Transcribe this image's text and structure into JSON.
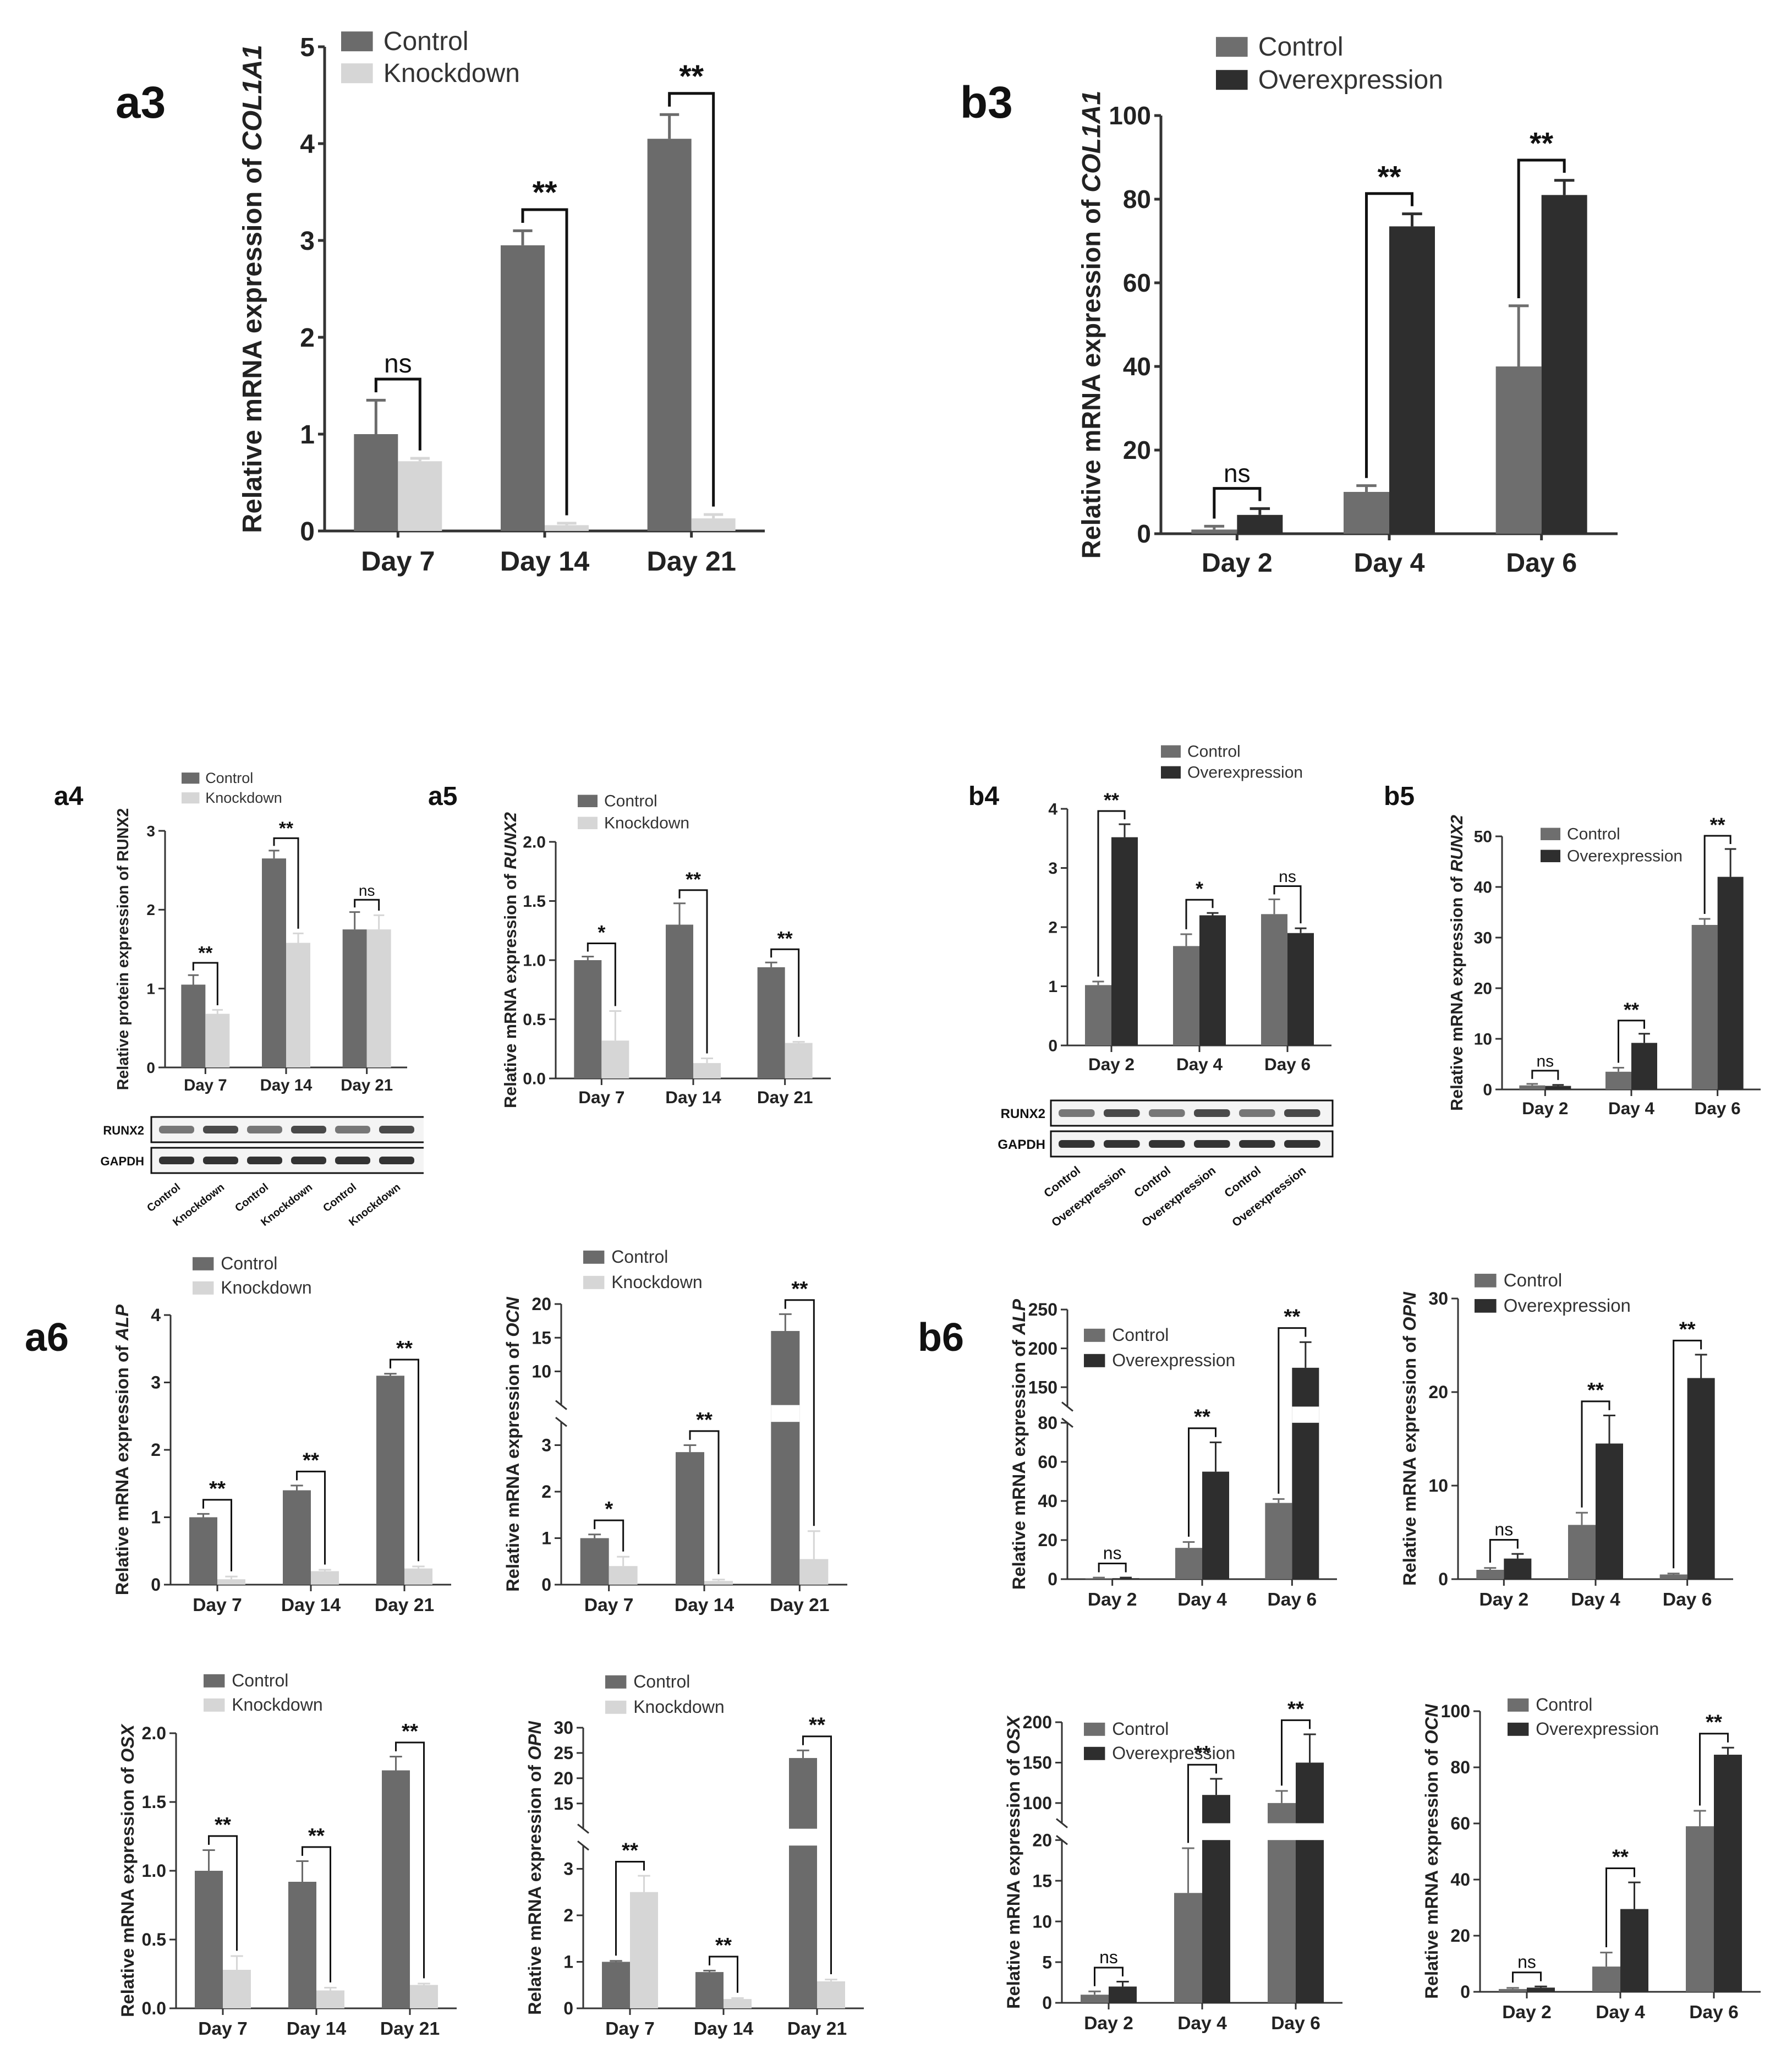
{
  "colors": {
    "control": "#6b6b6b",
    "knockdown": "#d6d6d6",
    "ctrl_b": "#6e6e6e",
    "over": "#2e2e2e",
    "axis": "#333333"
  },
  "legends": {
    "control": "Control",
    "knockdown": "Knockdown",
    "overexpression": "Overexpression"
  },
  "panel_labels": {
    "a3": "a3",
    "b3": "b3",
    "a4": "a4",
    "a5": "a5",
    "b4": "b4",
    "b5": "b5",
    "a6": "a6",
    "b6": "b6"
  },
  "western": {
    "a4": {
      "rows": [
        "RUNX2",
        "GAPDH"
      ],
      "lanes": [
        "Control",
        "Knockdown",
        "Control",
        "Knockdown",
        "Control",
        "Knockdown"
      ]
    },
    "b4": {
      "rows": [
        "RUNX2",
        "GAPDH"
      ],
      "lanes": [
        "Control",
        "Overexpression",
        "Control",
        "Overexpression",
        "Control",
        "Overexpression"
      ]
    }
  },
  "chart_data": [
    {
      "id": "a3",
      "type": "bar",
      "ylabel_prefix": "Relative mRNA expression of ",
      "gene": "COL1A1",
      "categories": [
        "Day 7",
        "Day 14",
        "Day 21"
      ],
      "series": [
        {
          "name": "Control",
          "values": [
            1.0,
            2.95,
            4.05
          ],
          "errors": [
            0.35,
            0.15,
            0.25
          ]
        },
        {
          "name": "Knockdown",
          "values": [
            0.72,
            0.06,
            0.13
          ],
          "errors": [
            0.03,
            0.02,
            0.04
          ]
        }
      ],
      "ylim": [
        0,
        5
      ],
      "yticks": [
        "0",
        "1",
        "2",
        "3",
        "4",
        "5"
      ],
      "significance": [
        "ns",
        "**",
        "**"
      ]
    },
    {
      "id": "b3",
      "type": "bar",
      "ylabel_prefix": "Relative mRNA expression of ",
      "gene": "COL1A1",
      "categories": [
        "Day 2",
        "Day 4",
        "Day 6"
      ],
      "series": [
        {
          "name": "Control",
          "values": [
            1.0,
            10.0,
            40.0
          ],
          "errors": [
            0.8,
            1.5,
            14.5
          ]
        },
        {
          "name": "Overexpression",
          "values": [
            4.5,
            73.5,
            81.0
          ],
          "errors": [
            1.5,
            3.0,
            3.5
          ]
        }
      ],
      "ylim": [
        0,
        100
      ],
      "yticks": [
        "0",
        "20",
        "40",
        "60",
        "80",
        "100"
      ],
      "significance": [
        "ns",
        "**",
        "**"
      ]
    },
    {
      "id": "a4",
      "type": "bar",
      "ylabel_prefix": "Relative protein expression of ",
      "gene": "RUNX2",
      "gene_italic": false,
      "categories": [
        "Day 7",
        "Day 14",
        "Day 21"
      ],
      "series": [
        {
          "name": "Control",
          "values": [
            1.05,
            2.65,
            1.75
          ],
          "errors": [
            0.12,
            0.1,
            0.22
          ]
        },
        {
          "name": "Knockdown",
          "values": [
            0.68,
            1.58,
            1.75
          ],
          "errors": [
            0.05,
            0.12,
            0.18
          ]
        }
      ],
      "ylim": [
        0,
        3
      ],
      "yticks": [
        "0",
        "1",
        "2",
        "3"
      ],
      "significance": [
        "**",
        "**",
        "ns"
      ]
    },
    {
      "id": "a5",
      "type": "bar",
      "ylabel_prefix": "Relative mRNA expression of ",
      "gene": "RUNX2",
      "categories": [
        "Day 7",
        "Day 14",
        "Day 21"
      ],
      "series": [
        {
          "name": "Control",
          "values": [
            1.0,
            1.3,
            0.94
          ],
          "errors": [
            0.03,
            0.18,
            0.04
          ]
        },
        {
          "name": "Knockdown",
          "values": [
            0.32,
            0.13,
            0.3
          ],
          "errors": [
            0.25,
            0.04,
            0.01
          ]
        }
      ],
      "ylim": [
        0,
        2.0
      ],
      "yticks": [
        "0.0",
        "0.5",
        "1.0",
        "1.5",
        "2.0"
      ],
      "significance": [
        "*",
        "**",
        "**"
      ]
    },
    {
      "id": "b4",
      "type": "bar",
      "ylabel_prefix": "",
      "gene": "",
      "categories": [
        "Day 2",
        "Day 4",
        "Day 6"
      ],
      "series": [
        {
          "name": "Control",
          "values": [
            1.02,
            1.68,
            2.22
          ],
          "errors": [
            0.06,
            0.2,
            0.25
          ]
        },
        {
          "name": "Overexpression",
          "values": [
            3.52,
            2.2,
            1.9
          ],
          "errors": [
            0.22,
            0.04,
            0.08
          ]
        }
      ],
      "ylim": [
        0,
        4
      ],
      "yticks": [
        "0",
        "1",
        "2",
        "3",
        "4"
      ],
      "significance": [
        "**",
        "*",
        "ns"
      ]
    },
    {
      "id": "b5",
      "type": "bar",
      "ylabel_prefix": "Relative mRNA expression of ",
      "gene": "RUNX2",
      "categories": [
        "Day 2",
        "Day 4",
        "Day 6"
      ],
      "series": [
        {
          "name": "Control",
          "values": [
            0.8,
            3.5,
            32.5
          ],
          "errors": [
            0.3,
            0.8,
            1.2
          ]
        },
        {
          "name": "Overexpression",
          "values": [
            0.7,
            9.2,
            42.0
          ],
          "errors": [
            0.2,
            1.8,
            5.5
          ]
        }
      ],
      "ylim": [
        0,
        50
      ],
      "yticks": [
        "0",
        "10",
        "20",
        "30",
        "40",
        "50"
      ],
      "significance": [
        "ns",
        "**",
        "**"
      ]
    },
    {
      "id": "a6a",
      "type": "bar",
      "ylabel_prefix": "Relative mRNA expression of ",
      "gene": "ALP",
      "categories": [
        "Day 7",
        "Day 14",
        "Day 21"
      ],
      "series": [
        {
          "name": "Control",
          "values": [
            1.0,
            1.4,
            3.1
          ],
          "errors": [
            0.05,
            0.07,
            0.03
          ]
        },
        {
          "name": "Knockdown",
          "values": [
            0.08,
            0.2,
            0.24
          ],
          "errors": [
            0.04,
            0.02,
            0.03
          ]
        }
      ],
      "ylim": [
        0,
        4
      ],
      "yticks": [
        "0",
        "1",
        "2",
        "3",
        "4"
      ],
      "significance": [
        "**",
        "**",
        "**"
      ]
    },
    {
      "id": "a6b",
      "type": "bar",
      "ylabel_prefix": "Relative mRNA expression of ",
      "gene": "OCN",
      "categories": [
        "Day 7",
        "Day 14",
        "Day 21"
      ],
      "series": [
        {
          "name": "Control",
          "values": [
            1.0,
            2.85,
            16.0
          ],
          "errors": [
            0.08,
            0.15,
            2.5
          ]
        },
        {
          "name": "Knockdown",
          "values": [
            0.4,
            0.08,
            0.55
          ],
          "errors": [
            0.2,
            0.03,
            0.6
          ]
        }
      ],
      "broken_axis": {
        "lower": [
          0,
          3.5
        ],
        "upper": [
          5,
          20
        ]
      },
      "yticks": [
        "0",
        "1",
        "2",
        "3",
        "10",
        "15",
        "20"
      ],
      "significance": [
        "*",
        "**",
        "**"
      ]
    },
    {
      "id": "a6c",
      "type": "bar",
      "ylabel_prefix": "Relative mRNA expression of ",
      "gene": "OSX",
      "categories": [
        "Day 7",
        "Day 14",
        "Day 21"
      ],
      "series": [
        {
          "name": "Control",
          "values": [
            1.0,
            0.92,
            1.73
          ],
          "errors": [
            0.15,
            0.15,
            0.1
          ]
        },
        {
          "name": "Knockdown",
          "values": [
            0.28,
            0.13,
            0.17
          ],
          "errors": [
            0.1,
            0.02,
            0.01
          ]
        }
      ],
      "ylim": [
        0,
        2.0
      ],
      "yticks": [
        "0.0",
        "0.5",
        "1.0",
        "1.5",
        "2.0"
      ],
      "significance": [
        "**",
        "**",
        "**"
      ]
    },
    {
      "id": "a6d",
      "type": "bar",
      "ylabel_prefix": "Relative mRNA expression of ",
      "gene": "OPN",
      "categories": [
        "Day 7",
        "Day 14",
        "Day 21"
      ],
      "series": [
        {
          "name": "Control",
          "values": [
            1.0,
            0.78,
            24.0
          ],
          "errors": [
            0.02,
            0.03,
            1.5
          ]
        },
        {
          "name": "Knockdown",
          "values": [
            2.5,
            0.2,
            0.58
          ],
          "errors": [
            0.35,
            0.02,
            0.04
          ]
        }
      ],
      "broken_axis": {
        "lower": [
          0,
          3.5
        ],
        "upper": [
          10,
          30
        ]
      },
      "yticks": [
        "0",
        "1",
        "2",
        "3",
        "15",
        "20",
        "25",
        "30"
      ],
      "significance": [
        "**",
        "**",
        "**"
      ]
    },
    {
      "id": "b6a",
      "type": "bar",
      "ylabel_prefix": "Relative mRNA expression of ",
      "gene": "ALP",
      "categories": [
        "Day 2",
        "Day 4",
        "Day 6"
      ],
      "series": [
        {
          "name": "Control",
          "values": [
            0.5,
            16.0,
            39.0
          ],
          "errors": [
            0.3,
            3.0,
            2.0
          ]
        },
        {
          "name": "Overexpression",
          "values": [
            0.5,
            55.0,
            175.0
          ],
          "errors": [
            0.3,
            15.0,
            33.0
          ]
        }
      ],
      "broken_axis": {
        "lower": [
          0,
          80
        ],
        "upper": [
          125,
          250
        ]
      },
      "yticks": [
        "0",
        "20",
        "40",
        "60",
        "80",
        "150",
        "200",
        "250"
      ],
      "significance": [
        "ns",
        "**",
        "**"
      ]
    },
    {
      "id": "b6b",
      "type": "bar",
      "ylabel_prefix": "Relative mRNA expression of ",
      "gene": "OPN",
      "categories": [
        "Day 2",
        "Day 4",
        "Day 6"
      ],
      "series": [
        {
          "name": "Control",
          "values": [
            1.0,
            5.8,
            0.5
          ],
          "errors": [
            0.2,
            1.3,
            0.1
          ]
        },
        {
          "name": "Overexpression",
          "values": [
            2.2,
            14.5,
            21.5
          ],
          "errors": [
            0.5,
            3.0,
            2.5
          ]
        }
      ],
      "ylim": [
        0,
        30
      ],
      "yticks": [
        "0",
        "10",
        "20",
        "30"
      ],
      "significance": [
        "ns",
        "**",
        "**"
      ]
    },
    {
      "id": "b6c",
      "type": "bar",
      "ylabel_prefix": "Relative mRNA expression of ",
      "gene": "OSX",
      "categories": [
        "Day 2",
        "Day 4",
        "Day 6"
      ],
      "series": [
        {
          "name": "Control",
          "values": [
            1.0,
            13.5,
            100.0
          ],
          "errors": [
            0.4,
            5.5,
            15.0
          ]
        },
        {
          "name": "Overexpression",
          "values": [
            2.0,
            110.0,
            150.0
          ],
          "errors": [
            0.6,
            20.0,
            35.0
          ]
        }
      ],
      "broken_axis": {
        "lower": [
          0,
          20
        ],
        "upper": [
          75,
          200
        ]
      },
      "yticks": [
        "0",
        "5",
        "10",
        "15",
        "20",
        "100",
        "150",
        "200"
      ],
      "significance": [
        "ns",
        "**",
        "**"
      ]
    },
    {
      "id": "b6d",
      "type": "bar",
      "ylabel_prefix": "Relative mRNA expression of ",
      "gene": "OCN",
      "categories": [
        "Day 2",
        "Day 4",
        "Day 6"
      ],
      "series": [
        {
          "name": "Control",
          "values": [
            1.0,
            9.0,
            59.0
          ],
          "errors": [
            0.4,
            5.0,
            5.5
          ]
        },
        {
          "name": "Overexpression",
          "values": [
            1.5,
            29.5,
            84.5
          ],
          "errors": [
            0.4,
            9.5,
            2.5
          ]
        }
      ],
      "ylim": [
        0,
        100
      ],
      "yticks": [
        "0",
        "20",
        "40",
        "60",
        "80",
        "100"
      ],
      "significance": [
        "ns",
        "**",
        "**"
      ]
    }
  ]
}
